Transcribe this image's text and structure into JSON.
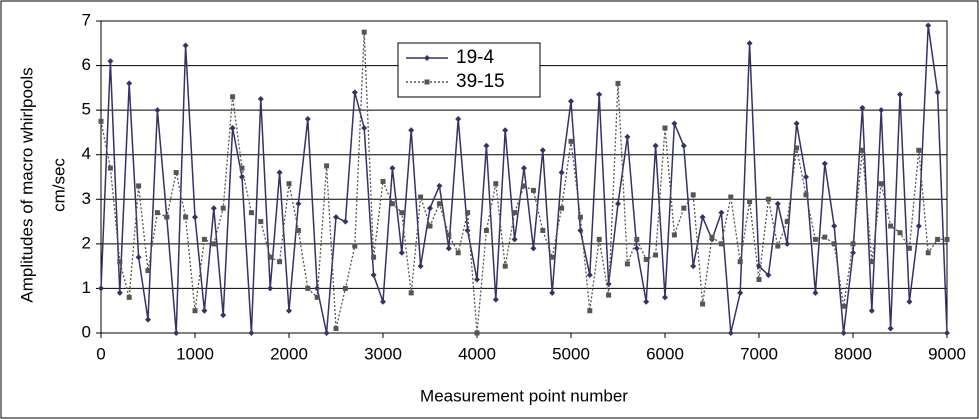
{
  "chart_data": {
    "type": "line",
    "x_label": "Measurement point number",
    "y_label": [
      "Amplitudes of macro whirlpools",
      "cm/sec"
    ],
    "x": [
      0,
      100,
      200,
      300,
      400,
      500,
      600,
      700,
      800,
      900,
      1000,
      1100,
      1200,
      1300,
      1400,
      1500,
      1600,
      1700,
      1800,
      1900,
      2000,
      2100,
      2200,
      2300,
      2400,
      2500,
      2600,
      2700,
      2800,
      2900,
      3000,
      3100,
      3200,
      3300,
      3400,
      3500,
      3600,
      3700,
      3800,
      3900,
      4000,
      4100,
      4200,
      4300,
      4400,
      4500,
      4600,
      4700,
      4800,
      4900,
      5000,
      5100,
      5200,
      5300,
      5400,
      5500,
      5600,
      5700,
      5800,
      5900,
      6000,
      6100,
      6200,
      6300,
      6400,
      6500,
      6600,
      6700,
      6800,
      6900,
      7000,
      7100,
      7200,
      7300,
      7400,
      7500,
      7600,
      7700,
      7800,
      7900,
      8000,
      8100,
      8200,
      8300,
      8400,
      8500,
      8600,
      8700,
      8800,
      8900,
      9000
    ],
    "series": [
      {
        "name": "19-4",
        "color": "#333366",
        "marker": "diamond",
        "dash": "solid",
        "values": [
          1.0,
          6.1,
          0.9,
          5.6,
          1.7,
          0.3,
          5.0,
          2.6,
          0,
          6.45,
          2.6,
          0.5,
          2.8,
          0.4,
          4.6,
          3.5,
          0,
          5.25,
          1.0,
          3.6,
          0.5,
          2.9,
          4.8,
          1.0,
          0,
          2.6,
          2.5,
          5.4,
          4.6,
          1.3,
          0.7,
          3.7,
          1.8,
          4.55,
          1.5,
          2.8,
          3.3,
          1.9,
          4.8,
          2.3,
          1.2,
          4.2,
          0.75,
          4.55,
          2.1,
          3.7,
          1.9,
          4.1,
          0.9,
          3.6,
          5.2,
          2.3,
          1.3,
          5.35,
          1.1,
          2.9,
          4.4,
          1.9,
          0.7,
          4.2,
          0.8,
          4.7,
          4.2,
          1.5,
          2.6,
          2.1,
          2.7,
          0,
          0.9,
          6.5,
          1.5,
          1.3,
          2.9,
          2.0,
          4.7,
          3.5,
          0.9,
          3.8,
          2.4,
          0,
          1.8,
          5.05,
          0.5,
          5.0,
          0.1,
          5.35,
          0.7,
          2.4,
          6.9,
          5.4,
          0
        ]
      },
      {
        "name": "39-15",
        "color": "#555555",
        "marker": "square",
        "dash": "dotted",
        "values": [
          4.75,
          3.7,
          1.6,
          0.8,
          3.3,
          1.4,
          2.7,
          2.6,
          3.6,
          2.6,
          0.5,
          2.1,
          2.0,
          2.8,
          5.3,
          3.7,
          2.7,
          2.5,
          1.7,
          1.6,
          3.35,
          2.3,
          1.0,
          0.8,
          3.75,
          0.1,
          1.0,
          1.95,
          6.75,
          1.7,
          3.4,
          2.9,
          2.7,
          0.9,
          3.05,
          2.4,
          2.9,
          2.2,
          1.8,
          2.7,
          0,
          2.3,
          3.35,
          1.5,
          2.7,
          3.3,
          3.2,
          2.3,
          1.7,
          2.8,
          4.3,
          2.6,
          0.5,
          2.1,
          0.85,
          5.6,
          1.55,
          2.1,
          1.65,
          1.75,
          4.6,
          2.2,
          2.8,
          3.1,
          0.65,
          2.15,
          2.0,
          3.05,
          1.6,
          2.95,
          1.2,
          3.0,
          1.95,
          2.5,
          4.15,
          3.1,
          2.1,
          2.15,
          2.0,
          0.6,
          2.0,
          4.1,
          1.6,
          3.35,
          2.4,
          2.25,
          1.9,
          4.1,
          1.8,
          2.1,
          2.1
        ]
      }
    ],
    "xlim": [
      0,
      9000
    ],
    "xticks": [
      0,
      1000,
      2000,
      3000,
      4000,
      5000,
      6000,
      7000,
      8000,
      9000
    ],
    "ylim": [
      0,
      7
    ],
    "yticks": [
      0,
      1,
      2,
      3,
      4,
      5,
      6,
      7
    ],
    "grid": true,
    "legend": "top"
  }
}
